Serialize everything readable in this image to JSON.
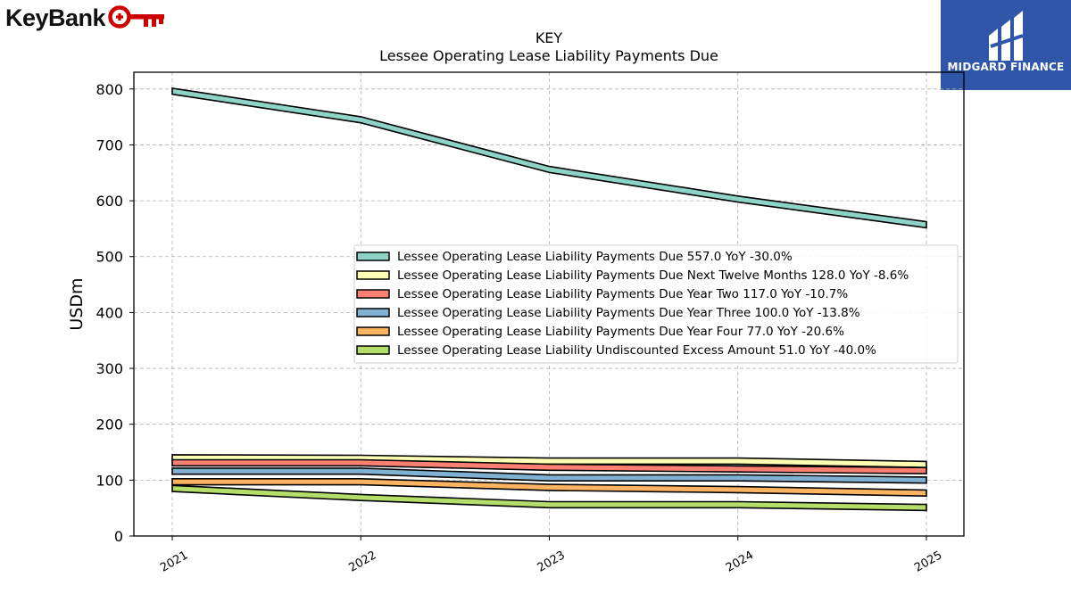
{
  "brand_left": {
    "name": "KeyBank"
  },
  "brand_right": {
    "name": "MIDGARD FINANCE"
  },
  "colors": {
    "series": [
      "#8dd3c7",
      "#ffffb3",
      "#fb8072",
      "#80b1d3",
      "#fdb462",
      "#b3de69"
    ],
    "key_red": "#cc0000",
    "midgard_blue": "#2f56a8"
  },
  "chart_data": {
    "type": "line",
    "title": "KEY",
    "subtitle": "Lessee Operating Lease Liability Payments Due",
    "xlabel": "",
    "ylabel": "USDm",
    "categories": [
      "2021",
      "2022",
      "2023",
      "2024",
      "2025"
    ],
    "ylim": [
      0,
      830
    ],
    "yticks": [
      0,
      100,
      200,
      300,
      400,
      500,
      600,
      700,
      800
    ],
    "grid": true,
    "legend_position": "center-right",
    "series": [
      {
        "name": "Lessee Operating Lease Liability Payments Due",
        "values": [
          796,
          745,
          656,
          603,
          557
        ],
        "legend": "Lessee Operating Lease Liability Payments Due  557.0 YoY -30.0%"
      },
      {
        "name": "Lessee Operating Lease Liability Payments Due Next Twelve Months",
        "values": [
          140,
          139,
          134,
          134,
          128
        ],
        "legend": "Lessee Operating Lease Liability Payments Due Next Twelve Months  128.0 YoY -8.6%"
      },
      {
        "name": "Lessee Operating Lease Liability Payments Due Year Two",
        "values": [
          131,
          131,
          123,
          120,
          117
        ],
        "legend": "Lessee Operating Lease Liability Payments Due Year Two  117.0 YoY -10.7%"
      },
      {
        "name": "Lessee Operating Lease Liability Payments Due Year Three",
        "values": [
          116,
          116,
          104,
          104,
          100
        ],
        "legend": "Lessee Operating Lease Liability Payments Due Year Three  100.0 YoY -13.8%"
      },
      {
        "name": "Lessee Operating Lease Liability Payments Due Year Four",
        "values": [
          97,
          97,
          87,
          83,
          77
        ],
        "legend": "Lessee Operating Lease Liability Payments Due Year Four  77.0 YoY -20.6%"
      },
      {
        "name": "Lessee Operating Lease Liability Undiscounted Excess Amount",
        "values": [
          85,
          69,
          56,
          56,
          51
        ],
        "legend": "Lessee Operating Lease Liability Undiscounted Excess Amount  51.0 YoY -40.0%"
      }
    ]
  }
}
